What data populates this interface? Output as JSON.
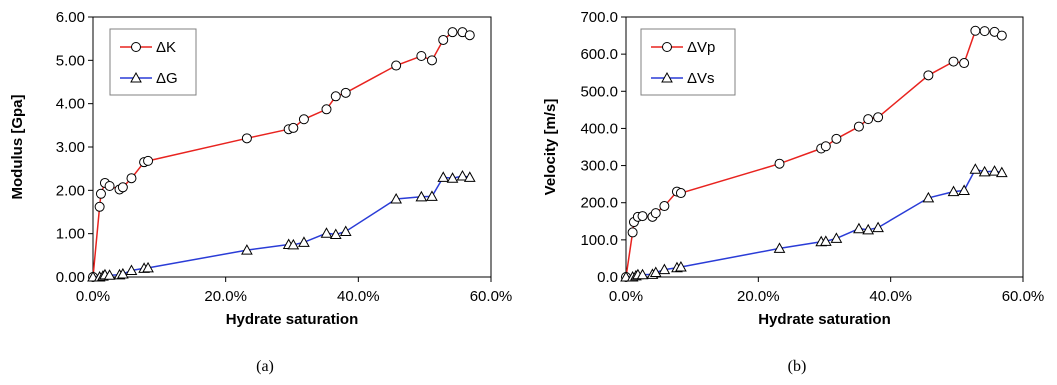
{
  "chart_data": [
    {
      "type": "line",
      "caption": "(a)",
      "xlabel": "Hydrate saturation",
      "ylabel": "Modulus [Gpa]",
      "xlim": [
        0,
        0.6
      ],
      "ylim": [
        0,
        6
      ],
      "xticks": [
        0,
        0.2,
        0.4,
        0.6
      ],
      "xtick_labels": [
        "0.0%",
        "20.0%",
        "40.0%",
        "60.0%"
      ],
      "yticks": [
        0,
        1,
        2,
        3,
        4,
        5,
        6
      ],
      "ytick_labels": [
        "0.00",
        "1.00",
        "2.00",
        "3.00",
        "4.00",
        "5.00",
        "6.00"
      ],
      "grid": false,
      "legend_position": "top-left",
      "series": [
        {
          "name": "ΔK",
          "color": "#e8231f",
          "marker": "circle",
          "x": [
            0.0,
            0.01,
            0.012,
            0.018,
            0.025,
            0.04,
            0.045,
            0.058,
            0.077,
            0.083,
            0.232,
            0.295,
            0.302,
            0.318,
            0.352,
            0.366,
            0.381,
            0.457,
            0.495,
            0.511,
            0.528,
            0.542,
            0.557,
            0.568
          ],
          "y": [
            0.0,
            1.62,
            1.92,
            2.17,
            2.1,
            2.02,
            2.07,
            2.28,
            2.65,
            2.68,
            3.2,
            3.41,
            3.44,
            3.64,
            3.87,
            4.17,
            4.25,
            4.88,
            5.1,
            5.0,
            5.47,
            5.65,
            5.65,
            5.58
          ]
        },
        {
          "name": "ΔG",
          "color": "#2a3cd7",
          "marker": "triangle",
          "x": [
            0.0,
            0.01,
            0.015,
            0.018,
            0.025,
            0.04,
            0.045,
            0.058,
            0.077,
            0.083,
            0.232,
            0.295,
            0.302,
            0.318,
            0.352,
            0.366,
            0.381,
            0.457,
            0.495,
            0.511,
            0.528,
            0.542,
            0.557,
            0.568
          ],
          "y": [
            0.0,
            0.0,
            0.02,
            0.05,
            0.04,
            0.05,
            0.07,
            0.15,
            0.2,
            0.21,
            0.62,
            0.75,
            0.74,
            0.8,
            1.01,
            0.98,
            1.05,
            1.8,
            1.85,
            1.86,
            2.3,
            2.28,
            2.33,
            2.3
          ]
        }
      ]
    },
    {
      "type": "line",
      "caption": "(b)",
      "xlabel": "Hydrate saturation",
      "ylabel": "Velocity [m/s]",
      "xlim": [
        0,
        0.6
      ],
      "ylim": [
        0,
        700
      ],
      "xticks": [
        0,
        0.2,
        0.4,
        0.6
      ],
      "xtick_labels": [
        "0.0%",
        "20.0%",
        "40.0%",
        "60.0%"
      ],
      "yticks": [
        0,
        100,
        200,
        300,
        400,
        500,
        600,
        700
      ],
      "ytick_labels": [
        "0.0",
        "100.0",
        "200.0",
        "300.0",
        "400.0",
        "500.0",
        "600.0",
        "700.0"
      ],
      "grid": false,
      "legend_position": "top-left",
      "series": [
        {
          "name": "ΔVp",
          "color": "#e8231f",
          "marker": "circle",
          "x": [
            0.0,
            0.01,
            0.012,
            0.018,
            0.025,
            0.04,
            0.045,
            0.058,
            0.077,
            0.083,
            0.232,
            0.295,
            0.302,
            0.318,
            0.352,
            0.366,
            0.381,
            0.457,
            0.495,
            0.511,
            0.528,
            0.542,
            0.557,
            0.568
          ],
          "y": [
            0,
            120,
            148,
            162,
            164,
            162,
            172,
            191,
            230,
            226,
            305,
            346,
            352,
            372,
            405,
            425,
            430,
            543,
            580,
            576,
            663,
            662,
            660,
            650
          ]
        },
        {
          "name": "ΔVs",
          "color": "#2a3cd7",
          "marker": "triangle",
          "x": [
            0.0,
            0.01,
            0.015,
            0.018,
            0.025,
            0.04,
            0.045,
            0.058,
            0.077,
            0.083,
            0.232,
            0.295,
            0.302,
            0.318,
            0.352,
            0.366,
            0.381,
            0.457,
            0.495,
            0.511,
            0.528,
            0.542,
            0.557,
            0.568
          ],
          "y": [
            0,
            0,
            3,
            6,
            6,
            7,
            12,
            20,
            25,
            27,
            77,
            95,
            96,
            104,
            130,
            127,
            133,
            213,
            230,
            233,
            290,
            283,
            285,
            281
          ]
        }
      ]
    }
  ]
}
